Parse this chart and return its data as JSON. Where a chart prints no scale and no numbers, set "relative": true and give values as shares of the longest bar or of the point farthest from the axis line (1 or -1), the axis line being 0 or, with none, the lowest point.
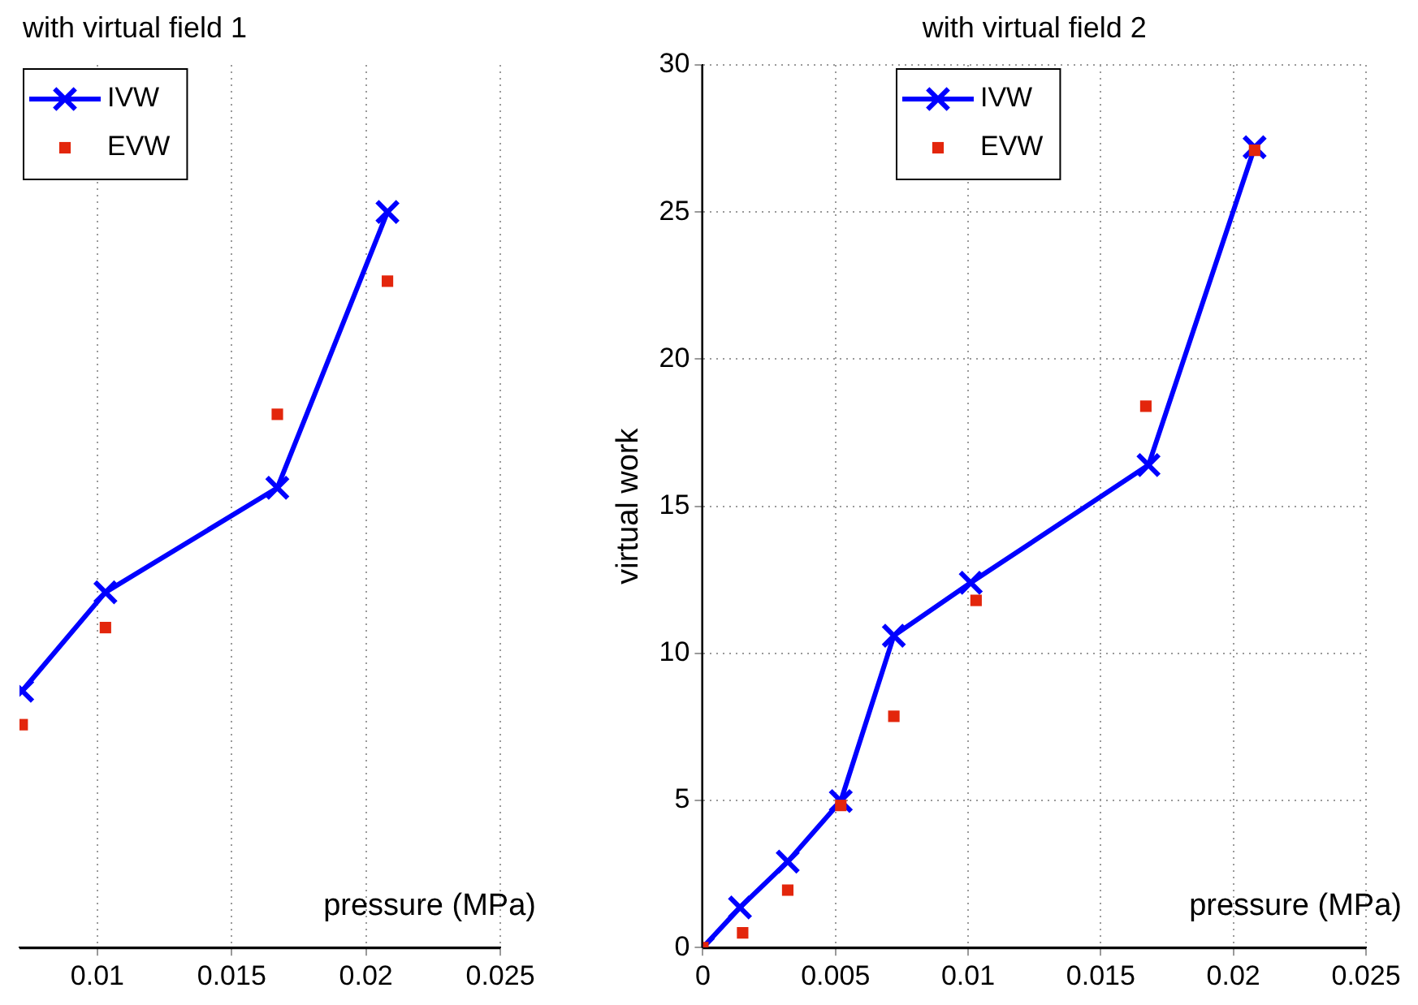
{
  "chart_data": [
    {
      "type": "line",
      "title": "with virtual field 1",
      "xlabel": "pressure (MPa)",
      "relative": true,
      "xlim": [
        0.0071,
        0.025
      ],
      "xticks": [
        0.01,
        0.015,
        0.02,
        0.025
      ],
      "grid": "x",
      "legend": "top left",
      "series": [
        {
          "name": "IVW",
          "marker": "cross",
          "color": "#0000ff",
          "x": [
            0.0072,
            0.0103,
            0.0167,
            0.0208
          ],
          "values": [
            0.349,
            0.483,
            0.625,
            1
          ]
        },
        {
          "name": "EVW",
          "type": "scatter",
          "marker": "square",
          "color": "#e3260c",
          "x": [
            0.0072,
            0.0103,
            0.0167,
            0.0208
          ],
          "values": [
            0.303,
            0.435,
            0.725,
            0.906
          ]
        }
      ]
    },
    {
      "type": "line",
      "title": "with virtual field 2",
      "xlabel": "pressure (MPa)",
      "ylabel": "virtual work",
      "xlim": [
        0,
        0.025
      ],
      "xticks": [
        0,
        0.005,
        0.01,
        0.015,
        0.02,
        0.025
      ],
      "ylim": [
        0,
        30
      ],
      "yticks": [
        0,
        5,
        10,
        15,
        20,
        25,
        30
      ],
      "grid": true,
      "legend": "top",
      "series": [
        {
          "name": "IVW",
          "marker": "cross",
          "color": "#0000ff",
          "x": [
            0,
            0.0014,
            0.0032,
            0.0052,
            0.0072,
            0.0101,
            0.0168,
            0.0208
          ],
          "values": [
            0,
            1.36,
            2.92,
            4.98,
            10.6,
            12.4,
            16.4,
            27.2
          ]
        },
        {
          "name": "EVW",
          "type": "scatter",
          "marker": "square",
          "color": "#e3260c",
          "x": [
            0,
            0.0015,
            0.0032,
            0.0052,
            0.0072,
            0.0103,
            0.0167,
            0.0208
          ],
          "values": [
            0,
            0.5,
            1.95,
            4.83,
            7.86,
            11.8,
            18.4,
            27.1
          ]
        }
      ]
    }
  ]
}
